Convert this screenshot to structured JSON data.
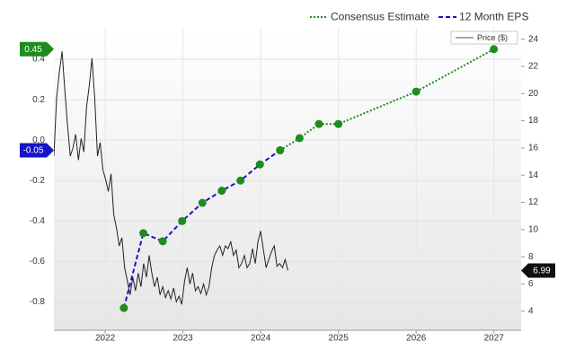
{
  "chart_data": {
    "type": "line",
    "xlim": [
      2021.34,
      2027.35
    ],
    "xticks": [
      2022,
      2023,
      2024,
      2025,
      2026,
      2027
    ],
    "ylim": [
      -0.94,
      0.56
    ],
    "yticks": [
      0.4,
      0.2,
      {
        "value": 0,
        "label": "0.0"
      },
      -0.2,
      -0.4,
      -0.6,
      -0.8
    ],
    "y2lim": [
      2.6,
      24.9
    ],
    "y2ticks": [
      24,
      22,
      20,
      18,
      16,
      14,
      12,
      10,
      8,
      6,
      4
    ],
    "grid": true,
    "marker_color": "#1e8c1e",
    "series": [
      {
        "name": "Consensus Estimate",
        "color": "#1e8c1e",
        "dash": "dotted",
        "markers": true,
        "x": [
          2024.25,
          2024.5,
          2024.75,
          2025.0,
          2026.0,
          2027.0
        ],
        "values": [
          -0.05,
          0.01,
          0.08,
          0.08,
          0.24,
          0.45
        ]
      },
      {
        "name": "12 Month EPS",
        "color": "#1414c8",
        "dash": "dashed",
        "markers": true,
        "x": [
          2022.24,
          2022.49,
          2022.74,
          2022.99,
          2023.25,
          2023.5,
          2023.74,
          2023.99,
          2024.25
        ],
        "values": [
          -0.83,
          -0.46,
          -0.5,
          -0.4,
          -0.31,
          -0.25,
          -0.2,
          -0.12,
          -0.05
        ]
      },
      {
        "name": "Price ($)",
        "color": "#222222",
        "dash": "solid",
        "markers": false,
        "axis": "y2",
        "x": [
          2021.34,
          2021.375,
          2021.41,
          2021.445,
          2021.48,
          2021.515,
          2021.55,
          2021.585,
          2021.62,
          2021.655,
          2021.69,
          2021.725,
          2021.76,
          2021.795,
          2021.83,
          2021.865,
          2021.9,
          2021.935,
          2021.97,
          2022.005,
          2022.04,
          2022.075,
          2022.11,
          2022.145,
          2022.18,
          2022.215,
          2022.25,
          2022.285,
          2022.32,
          2022.355,
          2022.39,
          2022.425,
          2022.46,
          2022.495,
          2022.53,
          2022.565,
          2022.6,
          2022.635,
          2022.67,
          2022.705,
          2022.74,
          2022.775,
          2022.81,
          2022.845,
          2022.88,
          2022.915,
          2022.95,
          2022.985,
          2023.02,
          2023.055,
          2023.09,
          2023.125,
          2023.16,
          2023.195,
          2023.23,
          2023.265,
          2023.3,
          2023.335,
          2023.37,
          2023.405,
          2023.44,
          2023.475,
          2023.51,
          2023.545,
          2023.58,
          2023.615,
          2023.65,
          2023.685,
          2023.72,
          2023.755,
          2023.79,
          2023.825,
          2023.86,
          2023.895,
          2023.93,
          2023.965,
          2024.0,
          2024.035,
          2024.07,
          2024.105,
          2024.14,
          2024.175,
          2024.21,
          2024.245,
          2024.28,
          2024.315,
          2024.35
        ],
        "values": [
          15.4,
          19.7,
          21.6,
          23.1,
          20.3,
          17.7,
          15.4,
          16.0,
          17.0,
          15.1,
          16.7,
          15.7,
          19.0,
          20.6,
          22.6,
          19.7,
          15.4,
          16.4,
          14.4,
          13.7,
          12.8,
          14.1,
          11.1,
          10.1,
          8.8,
          9.4,
          7.2,
          6.2,
          5.2,
          6.5,
          5.5,
          6.8,
          5.8,
          7.5,
          6.5,
          8.1,
          6.8,
          5.8,
          6.5,
          5.2,
          5.8,
          5.0,
          5.5,
          4.9,
          5.7,
          4.7,
          5.1,
          4.5,
          6.2,
          7.2,
          6.0,
          6.8,
          5.5,
          5.8,
          5.3,
          6.0,
          5.2,
          5.8,
          7.2,
          8.1,
          8.5,
          8.8,
          8.1,
          8.8,
          8.6,
          9.1,
          8.1,
          8.5,
          7.2,
          7.5,
          8.1,
          7.2,
          7.5,
          8.6,
          7.5,
          9.1,
          9.9,
          8.5,
          7.2,
          7.8,
          8.4,
          8.8,
          7.3,
          7.5,
          7.2,
          7.8,
          7.0
        ]
      }
    ],
    "flags": [
      {
        "value": 0.45,
        "color": "#1e8c1e",
        "axis": "y"
      },
      {
        "value": -0.05,
        "color": "#1414c8",
        "axis": "y"
      },
      {
        "value": 6.99,
        "color": "#111111",
        "axis": "y2"
      }
    ]
  }
}
